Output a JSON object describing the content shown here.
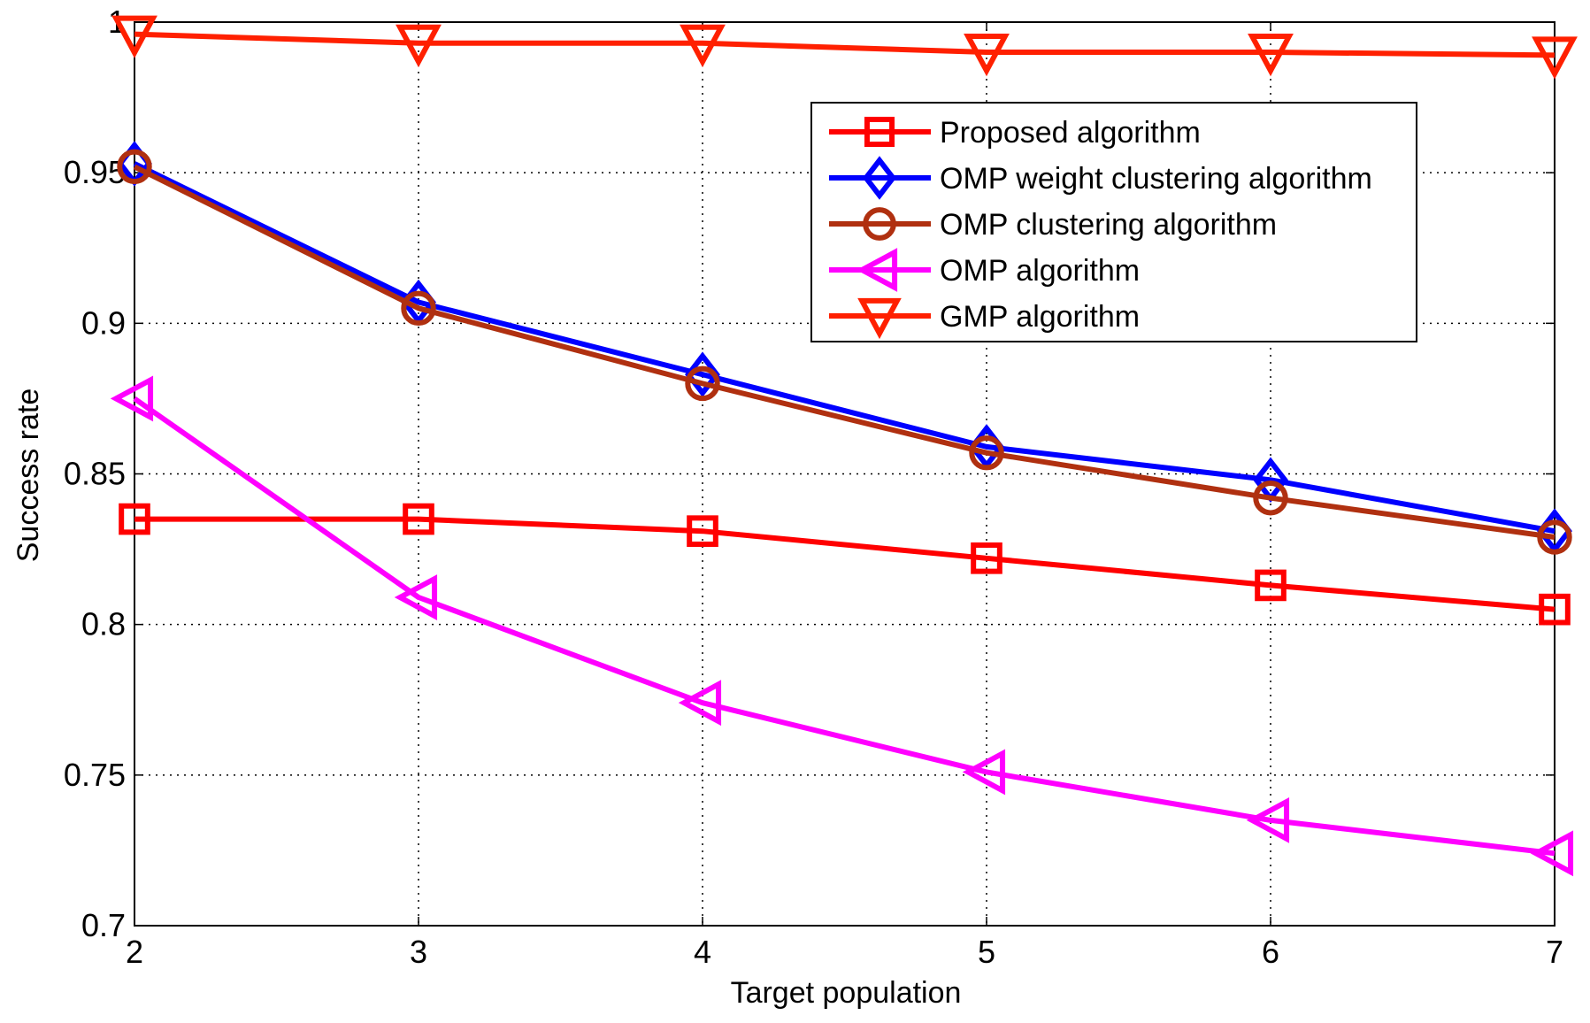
{
  "chart_data": {
    "type": "line",
    "title": "",
    "xlabel": "Target population",
    "ylabel": "Success rate",
    "xlim": [
      2,
      7
    ],
    "ylim": [
      0.7,
      1.0
    ],
    "x": [
      2,
      3,
      4,
      5,
      6,
      7
    ],
    "xticks": [
      "2",
      "3",
      "4",
      "5",
      "6",
      "7"
    ],
    "yticks": [
      {
        "value": 0.7,
        "label": "0.7"
      },
      {
        "value": 0.75,
        "label": "0.75"
      },
      {
        "value": 0.8,
        "label": "0.8"
      },
      {
        "value": 0.85,
        "label": "0.85"
      },
      {
        "value": 0.9,
        "label": "0.9"
      },
      {
        "value": 0.95,
        "label": "0.95"
      },
      {
        "value": 1.0,
        "label": "1"
      }
    ],
    "grid": true,
    "legend_position": "top-right",
    "series": [
      {
        "name": "Proposed algorithm",
        "color": "#ff0000",
        "marker": "square",
        "values": [
          0.835,
          0.835,
          0.831,
          0.822,
          0.813,
          0.805
        ]
      },
      {
        "name": "OMP weight clustering algorithm",
        "color": "#0000ff",
        "marker": "diamond",
        "values": [
          0.953,
          0.907,
          0.883,
          0.859,
          0.848,
          0.831
        ]
      },
      {
        "name": "OMP clustering algorithm",
        "color": "#b03010",
        "marker": "circle",
        "values": [
          0.952,
          0.905,
          0.88,
          0.857,
          0.842,
          0.829
        ]
      },
      {
        "name": "OMP algorithm",
        "color": "#ff00ff",
        "marker": "triangle-left",
        "values": [
          0.875,
          0.809,
          0.774,
          0.751,
          0.735,
          0.724
        ]
      },
      {
        "name": "GMP algorithm",
        "color": "#ff2000",
        "marker": "triangle-down",
        "values": [
          0.996,
          0.993,
          0.993,
          0.99,
          0.99,
          0.989
        ]
      }
    ]
  }
}
